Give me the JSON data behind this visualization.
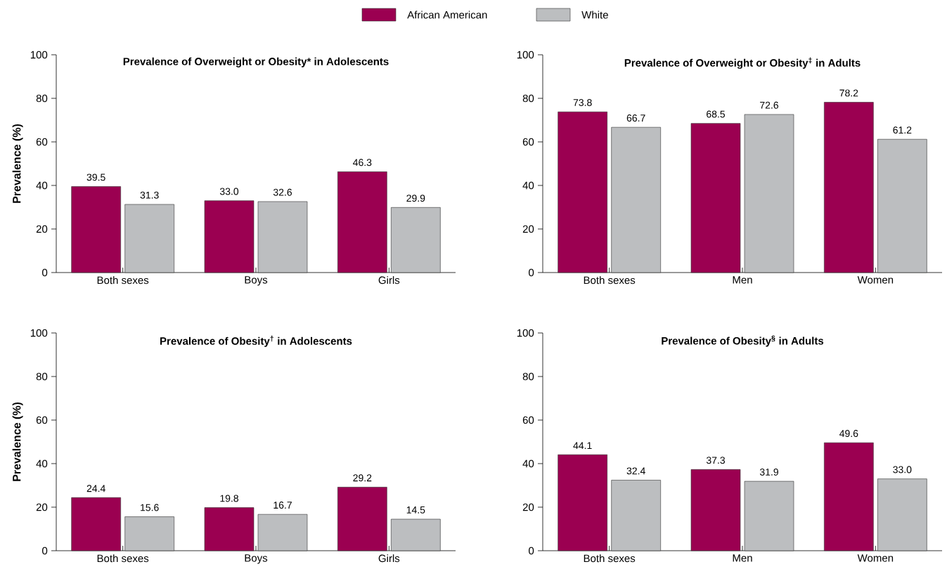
{
  "chart_data": [
    {
      "type": "bar",
      "title": "Prevalence of Overweight or Obesity* in Adolescents",
      "ylabel": "Prevalence (%)",
      "categories": [
        "Both sexes",
        "Boys",
        "Girls"
      ],
      "series": [
        {
          "name": "African American",
          "color": "#9b0051",
          "values": [
            39.5,
            33.0,
            46.3
          ],
          "value_labels": [
            "39.5",
            "33.0",
            "46.3"
          ]
        },
        {
          "name": "White",
          "color": "#bcbec0",
          "values": [
            31.3,
            32.6,
            29.9
          ],
          "value_labels": [
            "31.3",
            "32.6",
            "29.9"
          ]
        }
      ],
      "ylim": [
        0,
        100
      ],
      "yticks": [
        0,
        20,
        40,
        60,
        80,
        100
      ],
      "legend": "top"
    },
    {
      "type": "bar",
      "title": "Prevalence of Overweight or Obesity$^{‡}$ in Adults",
      "categories": [
        "Both sexes",
        "Men",
        "Women"
      ],
      "series": [
        {
          "color": "#9b0051",
          "values": [
            73.8,
            68.5,
            78.2
          ],
          "value_labels": [
            "73.8",
            "68.5",
            "78.2"
          ]
        },
        {
          "color": "#bcbec0",
          "values": [
            66.7,
            72.6,
            61.2
          ],
          "value_labels": [
            "66.7",
            "72.6",
            "61.2"
          ]
        }
      ],
      "ylim": [
        0,
        100
      ],
      "yticks": [
        0,
        20,
        40,
        60,
        80,
        100
      ]
    },
    {
      "type": "bar",
      "title": "Prevalence of Obesity$^{†}$ in Adolescents",
      "ylabel": "Prevalence (%)",
      "categories": [
        "Both sexes",
        "Boys",
        "Girls"
      ],
      "series": [
        {
          "color": "#9b0051",
          "values": [
            24.4,
            19.8,
            29.2
          ],
          "value_labels": [
            "24.4",
            "19.8",
            "29.2"
          ]
        },
        {
          "color": "#bcbec0",
          "values": [
            15.6,
            16.7,
            14.5
          ],
          "value_labels": [
            "15.6",
            "16.7",
            "14.5"
          ]
        }
      ],
      "ylim": [
        0,
        100
      ],
      "yticks": [
        0,
        20,
        40,
        60,
        80,
        100
      ]
    },
    {
      "type": "bar",
      "title": "Prevalence of Obesity$^{§}$ in Adults",
      "categories": [
        "Both sexes",
        "Men",
        "Women"
      ],
      "series": [
        {
          "color": "#9b0051",
          "values": [
            44.1,
            37.3,
            49.6
          ],
          "value_labels": [
            "44.1",
            "37.3",
            "49.6"
          ]
        },
        {
          "color": "#bcbec0",
          "values": [
            32.4,
            31.9,
            33.0
          ],
          "value_labels": [
            "32.4",
            "31.9",
            "33.0"
          ]
        }
      ],
      "ylim": [
        0,
        100
      ],
      "yticks": [
        0,
        20,
        40,
        60,
        80,
        100
      ]
    }
  ]
}
